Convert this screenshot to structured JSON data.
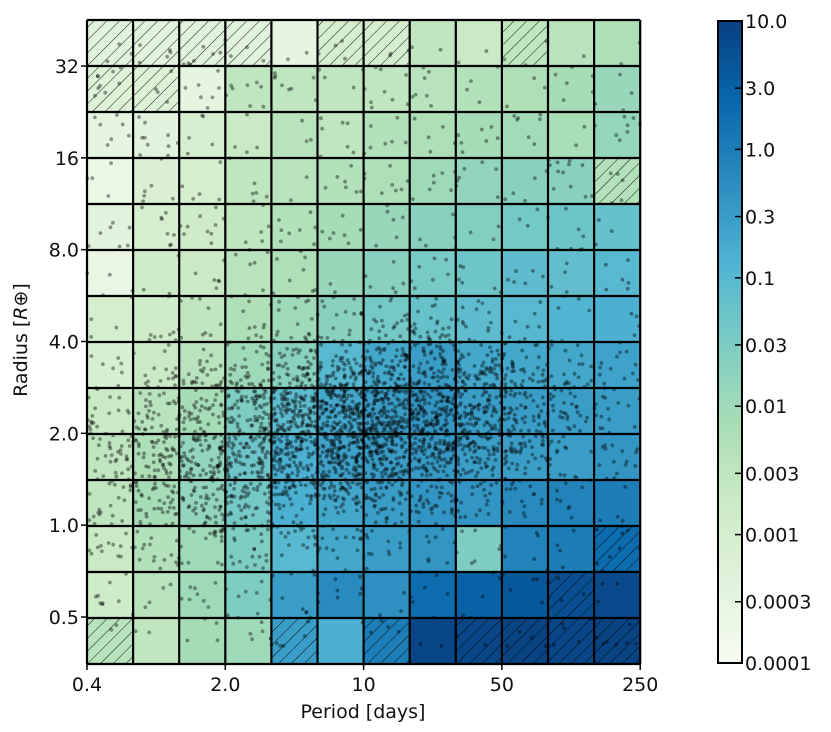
{
  "chart_data": {
    "type": "heatmap",
    "title": "",
    "xlabel": "Period [days]",
    "ylabel": "Radius [R⊕]",
    "ylabel_main": "Radius [",
    "ylabel_symbol": "R⊕",
    "ylabel_close": "]",
    "x_scale": "log",
    "y_scale": "log",
    "xlim": [
      0.4,
      250
    ],
    "ylim": [
      0.35,
      45
    ],
    "x_ticks": [
      0.4,
      2.0,
      10,
      50,
      250
    ],
    "x_tick_labels": [
      "0.4",
      "2.0",
      "10",
      "50",
      "250"
    ],
    "y_ticks": [
      0.5,
      1.0,
      2.0,
      4.0,
      8.0,
      16,
      32
    ],
    "y_tick_labels": [
      "0.5",
      "1.0",
      "2.0",
      "4.0",
      "8.0",
      "16",
      "32"
    ],
    "grid": "12 period bins x 14 radius bins, cells outlined in black",
    "colormap": "GnBu",
    "colorbar": {
      "scale": "log",
      "range": [
        0.0001,
        10.0
      ],
      "ticks": [
        10.0,
        3.0,
        1.0,
        0.3,
        0.1,
        0.03,
        0.01,
        0.003,
        0.001,
        0.0003,
        0.0001
      ],
      "tick_labels": [
        "10.0",
        "3.0",
        "1.0",
        "0.3",
        "0.1",
        "0.03",
        "0.01",
        "0.003",
        "0.001",
        "0.0003",
        "0.0001"
      ],
      "colors": [
        "#f7fcf0",
        "#e0f3db",
        "#ccebc5",
        "#a8ddb5",
        "#7bccc4",
        "#4eb3d3",
        "#2b8cbe",
        "#0868ac",
        "#084081"
      ]
    },
    "cells_note": "rows listed top (largest radius) to bottom (smallest radius); columns left (shortest period) to right; values are occurrence on the colorbar scale",
    "cells": [
      [
        0.0004,
        0.0004,
        0.0004,
        0.0004,
        0.0003,
        0.001,
        0.001,
        0.003,
        0.002,
        0.003,
        0.004,
        0.006
      ],
      [
        0.0005,
        0.0005,
        0.0003,
        0.003,
        0.003,
        0.003,
        0.003,
        0.004,
        0.005,
        0.006,
        0.008,
        0.012
      ],
      [
        0.0003,
        0.0004,
        0.0008,
        0.002,
        0.004,
        0.003,
        0.005,
        0.006,
        0.008,
        0.009,
        0.007,
        0.014
      ],
      [
        0.0002,
        0.0007,
        0.001,
        0.003,
        0.004,
        0.005,
        0.006,
        0.01,
        0.015,
        0.02,
        0.02,
        0.005
      ],
      [
        0.0004,
        0.0009,
        0.0015,
        0.003,
        0.005,
        0.008,
        0.012,
        0.02,
        0.025,
        0.04,
        0.05,
        0.06
      ],
      [
        0.00025,
        0.0015,
        0.002,
        0.004,
        0.006,
        0.012,
        0.02,
        0.035,
        0.05,
        0.08,
        0.07,
        0.1
      ],
      [
        0.001,
        0.0015,
        0.003,
        0.006,
        0.01,
        0.02,
        0.04,
        0.06,
        0.08,
        0.1,
        0.12,
        0.15
      ],
      [
        0.0008,
        0.002,
        0.004,
        0.01,
        0.02,
        0.1,
        0.2,
        0.3,
        0.2,
        0.2,
        0.2,
        0.25
      ],
      [
        0.002,
        0.004,
        0.008,
        0.03,
        0.08,
        0.2,
        0.3,
        0.4,
        0.3,
        0.3,
        0.3,
        0.3
      ],
      [
        0.003,
        0.006,
        0.015,
        0.05,
        0.15,
        0.25,
        0.3,
        0.35,
        0.3,
        0.3,
        0.3,
        0.4
      ],
      [
        0.003,
        0.008,
        0.015,
        0.04,
        0.15,
        0.2,
        0.3,
        0.4,
        0.4,
        0.6,
        0.8,
        1.0
      ],
      [
        0.002,
        0.005,
        0.01,
        0.03,
        0.1,
        0.2,
        0.3,
        0.4,
        0.03,
        0.8,
        1.0,
        2.0
      ],
      [
        0.0015,
        0.004,
        0.01,
        0.03,
        0.3,
        0.6,
        0.5,
        2.0,
        3.0,
        4.0,
        6.0,
        7.0
      ],
      [
        0.004,
        0.003,
        0.008,
        0.01,
        0.3,
        0.15,
        1.0,
        8.0,
        8.0,
        9.0,
        8.0,
        9.0
      ]
    ],
    "upper_limit_cells_note": "hatched cells (row, column) in the same orientation",
    "upper_limit_cells": [
      [
        0,
        0
      ],
      [
        0,
        1
      ],
      [
        0,
        2
      ],
      [
        0,
        3
      ],
      [
        0,
        5
      ],
      [
        0,
        6
      ],
      [
        0,
        9
      ],
      [
        1,
        0
      ],
      [
        1,
        1
      ],
      [
        3,
        11
      ],
      [
        11,
        11
      ],
      [
        12,
        10
      ],
      [
        13,
        0
      ],
      [
        13,
        4
      ],
      [
        13,
        6
      ],
      [
        13,
        8
      ],
      [
        13,
        9
      ],
      [
        13,
        10
      ],
      [
        13,
        11
      ]
    ],
    "scatter_note": "planet candidates drawn as small semi-transparent black points; density concentrated near period 3-30 days and radius 1-3",
    "scatter_color": "#000000"
  }
}
